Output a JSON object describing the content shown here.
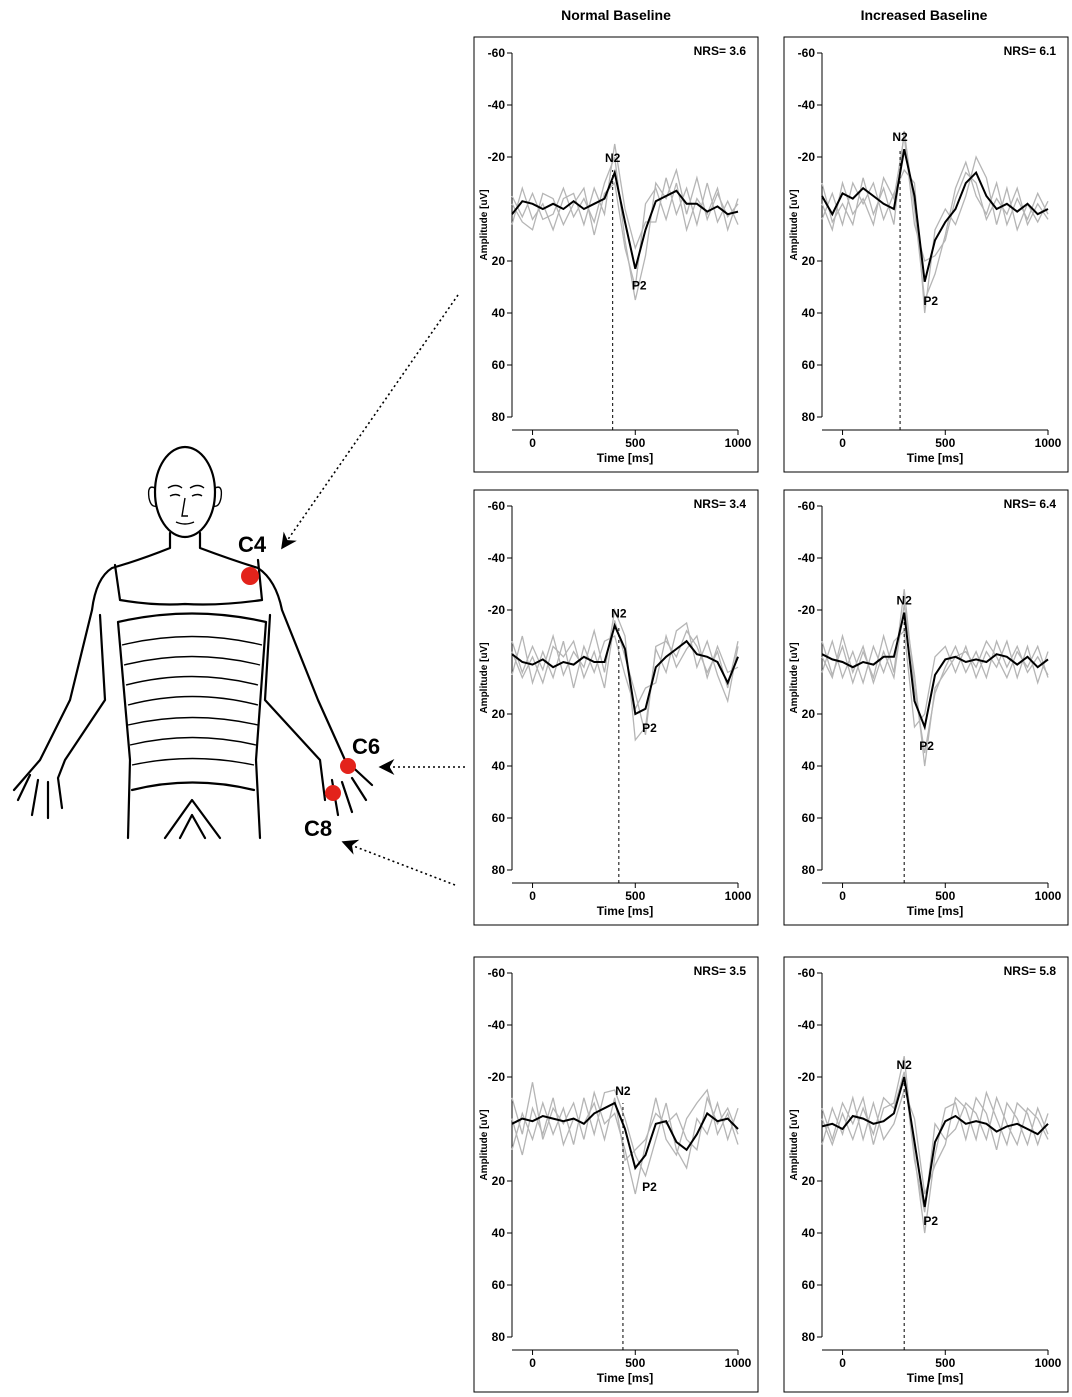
{
  "columns": [
    "Normal Baseline",
    "Increased Baseline"
  ],
  "body": {
    "labels": [
      "C4",
      "C6",
      "C8"
    ]
  },
  "chart_data": [
    {
      "type": "line",
      "nrs": "NRS= 3.6",
      "xlabel": "Time [ms]",
      "ylabel": "Amplitude [uV]",
      "xlim": [
        -100,
        1000
      ],
      "ylim": [
        -60,
        80
      ],
      "yinvert": true,
      "xticks": [
        0,
        500,
        1000
      ],
      "yticks": [
        -60,
        -40,
        -20,
        20,
        40,
        60,
        80
      ],
      "x": [
        -100,
        -50,
        0,
        50,
        100,
        150,
        200,
        250,
        300,
        350,
        400,
        450,
        500,
        550,
        600,
        650,
        700,
        750,
        800,
        850,
        900,
        950,
        1000
      ],
      "series": [
        {
          "color": "#b5b5b5",
          "values": [
            -5,
            3,
            -6,
            4,
            2,
            -8,
            3,
            -4,
            5,
            -10,
            -20,
            12,
            35,
            18,
            -10,
            -4,
            -15,
            2,
            -12,
            4,
            -6,
            3,
            -2
          ]
        },
        {
          "color": "#b5b5b5",
          "values": [
            6,
            -8,
            4,
            -2,
            8,
            -4,
            -6,
            6,
            -8,
            2,
            -25,
            0,
            15,
            5,
            5,
            -12,
            2,
            -8,
            6,
            -10,
            5,
            -3,
            6
          ]
        },
        {
          "color": "#b5b5b5",
          "values": [
            -2,
            5,
            8,
            -6,
            -4,
            6,
            -2,
            -8,
            10,
            -6,
            -10,
            15,
            30,
            -2,
            -8,
            4,
            -10,
            8,
            -4,
            2,
            -8,
            8,
            -4
          ]
        },
        {
          "color": "#000000",
          "values": [
            2,
            -3,
            -2,
            0,
            -2,
            0,
            -3,
            0,
            -2,
            -4,
            -14,
            5,
            23,
            8,
            -3,
            -5,
            -7,
            -2,
            -2,
            1,
            -1,
            2,
            1
          ]
        }
      ],
      "annotations": [
        {
          "text": "N2",
          "x": 390,
          "y": -15
        },
        {
          "text": "P2",
          "x": 490,
          "y": 24
        }
      ]
    },
    {
      "type": "line",
      "nrs": "NRS= 6.1",
      "xlabel": "Time [ms]",
      "ylabel": "Amplitude [uV]",
      "xlim": [
        -100,
        1000
      ],
      "ylim": [
        -60,
        80
      ],
      "yinvert": true,
      "xticks": [
        0,
        500,
        1000
      ],
      "yticks": [
        -60,
        -40,
        -20,
        20,
        40,
        60,
        80
      ],
      "x": [
        -100,
        -50,
        0,
        50,
        100,
        150,
        200,
        250,
        300,
        350,
        400,
        450,
        500,
        550,
        600,
        650,
        700,
        750,
        800,
        850,
        900,
        950,
        1000
      ],
      "series": [
        {
          "color": "#b5b5b5",
          "values": [
            -10,
            5,
            -2,
            6,
            -12,
            2,
            -8,
            6,
            -30,
            0,
            35,
            25,
            10,
            -8,
            -18,
            -5,
            2,
            -10,
            6,
            -4,
            4,
            -6,
            2
          ]
        },
        {
          "color": "#b5b5b5",
          "values": [
            4,
            -6,
            6,
            -10,
            -2,
            -10,
            4,
            -6,
            -15,
            -10,
            40,
            8,
            0,
            6,
            -5,
            -20,
            -12,
            6,
            -8,
            8,
            -2,
            5,
            -3
          ]
        },
        {
          "color": "#b5b5b5",
          "values": [
            -2,
            8,
            -10,
            2,
            -4,
            6,
            -12,
            -4,
            -28,
            6,
            20,
            18,
            12,
            -4,
            -14,
            -10,
            4,
            -4,
            2,
            -8,
            6,
            -2,
            4
          ]
        },
        {
          "color": "#000000",
          "values": [
            -5,
            2,
            -6,
            -4,
            -8,
            -5,
            -2,
            0,
            -23,
            -5,
            28,
            12,
            5,
            0,
            -10,
            -14,
            -5,
            0,
            -2,
            1,
            -2,
            2,
            0
          ]
        }
      ],
      "annotations": [
        {
          "text": "N2",
          "x": 280,
          "y": -23
        },
        {
          "text": "P2",
          "x": 400,
          "y": 30
        }
      ]
    },
    {
      "type": "line",
      "nrs": "NRS= 3.4",
      "xlabel": "Time [ms]",
      "ylabel": "Amplitude [uV]",
      "xlim": [
        -100,
        1000
      ],
      "ylim": [
        -60,
        80
      ],
      "yinvert": true,
      "xticks": [
        0,
        500,
        1000
      ],
      "yticks": [
        -60,
        -40,
        -20,
        20,
        40,
        60,
        80
      ],
      "x": [
        -100,
        -50,
        0,
        50,
        100,
        150,
        200,
        250,
        300,
        350,
        400,
        450,
        500,
        550,
        600,
        650,
        700,
        750,
        800,
        850,
        900,
        950,
        1000
      ],
      "series": [
        {
          "color": "#b5b5b5",
          "values": [
            -8,
            4,
            -6,
            3,
            -10,
            5,
            -4,
            2,
            -12,
            4,
            -20,
            -10,
            30,
            25,
            -5,
            4,
            -12,
            -15,
            2,
            -8,
            5,
            15,
            -6
          ]
        },
        {
          "color": "#b5b5b5",
          "values": [
            5,
            -10,
            8,
            -4,
            6,
            -8,
            10,
            -6,
            4,
            -8,
            -10,
            5,
            18,
            10,
            8,
            -10,
            2,
            -5,
            -10,
            6,
            -6,
            4,
            2
          ]
        },
        {
          "color": "#b5b5b5",
          "values": [
            -4,
            6,
            -2,
            8,
            -6,
            -2,
            -8,
            6,
            -4,
            10,
            -16,
            -2,
            12,
            28,
            -6,
            -8,
            -2,
            -12,
            -6,
            4,
            -4,
            10,
            -8
          ]
        },
        {
          "color": "#000000",
          "values": [
            -3,
            0,
            1,
            -1,
            2,
            0,
            1,
            -2,
            0,
            0,
            -14,
            -5,
            20,
            18,
            2,
            -2,
            -5,
            -8,
            -3,
            -2,
            0,
            8,
            -2
          ]
        }
      ],
      "annotations": [
        {
          "text": "N2",
          "x": 420,
          "y": -14
        },
        {
          "text": "P2",
          "x": 540,
          "y": 20
        }
      ]
    },
    {
      "type": "line",
      "nrs": "NRS= 6.4",
      "xlabel": "Time [ms]",
      "ylabel": "Amplitude [uV]",
      "xlim": [
        -100,
        1000
      ],
      "ylim": [
        -60,
        80
      ],
      "yinvert": true,
      "xticks": [
        0,
        500,
        1000
      ],
      "yticks": [
        -60,
        -40,
        -20,
        20,
        40,
        60,
        80
      ],
      "x": [
        -100,
        -50,
        0,
        50,
        100,
        150,
        200,
        250,
        300,
        350,
        400,
        450,
        500,
        550,
        600,
        650,
        700,
        750,
        800,
        850,
        900,
        950,
        1000
      ],
      "series": [
        {
          "color": "#b5b5b5",
          "values": [
            -8,
            5,
            -6,
            8,
            -4,
            6,
            -10,
            4,
            -28,
            10,
            35,
            12,
            2,
            -6,
            4,
            -4,
            6,
            -8,
            2,
            -6,
            4,
            -2,
            5
          ]
        },
        {
          "color": "#b5b5b5",
          "values": [
            4,
            -8,
            6,
            -4,
            8,
            -6,
            4,
            -8,
            -12,
            25,
            20,
            -2,
            -6,
            4,
            -6,
            6,
            -4,
            2,
            -8,
            6,
            -6,
            8,
            -4
          ]
        },
        {
          "color": "#b5b5b5",
          "values": [
            -2,
            6,
            -10,
            4,
            -6,
            8,
            -4,
            6,
            -22,
            5,
            40,
            10,
            4,
            -2,
            -4,
            2,
            -8,
            -2,
            6,
            -4,
            2,
            -6,
            6
          ]
        },
        {
          "color": "#000000",
          "values": [
            -3,
            -1,
            0,
            2,
            0,
            1,
            -2,
            -2,
            -19,
            15,
            25,
            5,
            -1,
            -2,
            0,
            -1,
            0,
            -3,
            -2,
            1,
            -2,
            2,
            -1
          ]
        }
      ],
      "annotations": [
        {
          "text": "N2",
          "x": 300,
          "y": -19
        },
        {
          "text": "P2",
          "x": 380,
          "y": 27
        }
      ]
    },
    {
      "type": "line",
      "nrs": "NRS= 3.5",
      "xlabel": "Time [ms]",
      "ylabel": "Amplitude [uV]",
      "xlim": [
        -100,
        1000
      ],
      "ylim": [
        -60,
        80
      ],
      "yinvert": true,
      "xticks": [
        0,
        500,
        1000
      ],
      "yticks": [
        -60,
        -40,
        -20,
        20,
        40,
        60,
        80
      ],
      "x": [
        -100,
        -50,
        0,
        50,
        100,
        150,
        200,
        250,
        300,
        350,
        400,
        450,
        500,
        550,
        600,
        650,
        700,
        750,
        800,
        850,
        900,
        950,
        1000
      ],
      "series": [
        {
          "color": "#b5b5b5",
          "values": [
            -12,
            2,
            -18,
            4,
            -8,
            -2,
            -10,
            4,
            -14,
            -2,
            -6,
            8,
            25,
            6,
            -12,
            4,
            10,
            -4,
            -10,
            -15,
            2,
            -6,
            6
          ]
        },
        {
          "color": "#b5b5b5",
          "values": [
            8,
            -6,
            4,
            -10,
            2,
            -8,
            6,
            -12,
            2,
            -14,
            -15,
            -4,
            10,
            18,
            4,
            -10,
            8,
            15,
            -4,
            2,
            -10,
            4,
            -8
          ]
        },
        {
          "color": "#b5b5b5",
          "values": [
            -4,
            10,
            -8,
            2,
            -12,
            6,
            -4,
            -2,
            -10,
            4,
            -12,
            12,
            8,
            4,
            -6,
            -2,
            -6,
            4,
            8,
            -12,
            -2,
            -8,
            2
          ]
        },
        {
          "color": "#000000",
          "values": [
            -2,
            -4,
            -3,
            -5,
            -4,
            -3,
            -4,
            -2,
            -6,
            -8,
            -10,
            0,
            15,
            10,
            -2,
            -3,
            5,
            8,
            2,
            -6,
            -3,
            -4,
            0
          ]
        }
      ],
      "annotations": [
        {
          "text": "N2",
          "x": 440,
          "y": -10
        },
        {
          "text": "P2",
          "x": 540,
          "y": 17
        }
      ]
    },
    {
      "type": "line",
      "nrs": "NRS= 5.8",
      "xlabel": "Time [ms]",
      "ylabel": "Amplitude [uV]",
      "xlim": [
        -100,
        1000
      ],
      "ylim": [
        -60,
        80
      ],
      "yinvert": true,
      "xticks": [
        0,
        500,
        1000
      ],
      "yticks": [
        -60,
        -40,
        -20,
        20,
        40,
        60,
        80
      ],
      "x": [
        -100,
        -50,
        0,
        50,
        100,
        150,
        200,
        250,
        300,
        350,
        400,
        450,
        500,
        550,
        600,
        650,
        700,
        750,
        800,
        850,
        900,
        950,
        1000
      ],
      "series": [
        {
          "color": "#b5b5b5",
          "values": [
            -8,
            4,
            -10,
            -2,
            -12,
            6,
            -8,
            -10,
            -28,
            10,
            40,
            10,
            -8,
            -10,
            4,
            -12,
            -6,
            8,
            -10,
            -4,
            6,
            -8,
            2
          ]
        },
        {
          "color": "#b5b5b5",
          "values": [
            6,
            -8,
            2,
            -12,
            4,
            -10,
            4,
            -2,
            -15,
            -4,
            25,
            14,
            6,
            -12,
            -8,
            4,
            -14,
            -4,
            6,
            -10,
            -6,
            6,
            -6
          ]
        },
        {
          "color": "#b5b5b5",
          "values": [
            -4,
            6,
            -6,
            4,
            -8,
            2,
            -12,
            -8,
            -22,
            12,
            32,
            -2,
            4,
            0,
            -10,
            -6,
            4,
            -12,
            -2,
            6,
            -8,
            -4,
            4
          ]
        },
        {
          "color": "#000000",
          "values": [
            -1,
            -2,
            0,
            -5,
            -4,
            -2,
            -3,
            -6,
            -20,
            5,
            30,
            5,
            -3,
            -5,
            -2,
            -3,
            -2,
            1,
            -1,
            -2,
            0,
            2,
            -2
          ]
        }
      ],
      "annotations": [
        {
          "text": "N2",
          "x": 300,
          "y": -20
        },
        {
          "text": "P2",
          "x": 400,
          "y": 30
        }
      ]
    }
  ]
}
